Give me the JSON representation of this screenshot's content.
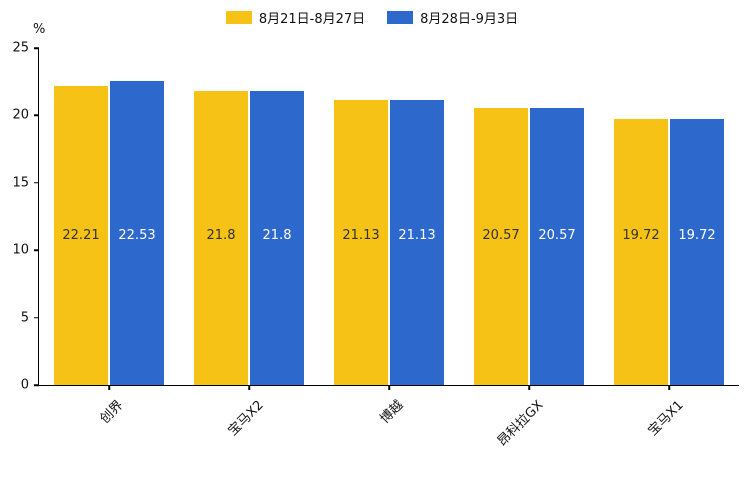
{
  "chart_data": {
    "type": "bar",
    "title": "",
    "xlabel": "",
    "ylabel": "%",
    "ylim": [
      0,
      25
    ],
    "yticks": [
      0,
      5,
      10,
      15,
      20,
      25
    ],
    "grid": false,
    "legend_position": "top",
    "categories": [
      "创界",
      "宝马X2",
      "博越",
      "昂科拉GX",
      "宝马X1"
    ],
    "series": [
      {
        "name": "8月21日-8月27日",
        "color": "#F6C215",
        "label_color": "#333333",
        "values": [
          22.21,
          21.8,
          21.13,
          20.57,
          19.72
        ],
        "labels": [
          "22.21",
          "21.8",
          "21.13",
          "20.57",
          "19.72"
        ]
      },
      {
        "name": "8月28日-9月3日",
        "color": "#2D68CC",
        "label_color": "#ffffff",
        "values": [
          22.53,
          21.8,
          21.13,
          20.57,
          19.72
        ],
        "labels": [
          "22.53",
          "21.8",
          "21.13",
          "20.57",
          "19.72"
        ]
      }
    ]
  }
}
